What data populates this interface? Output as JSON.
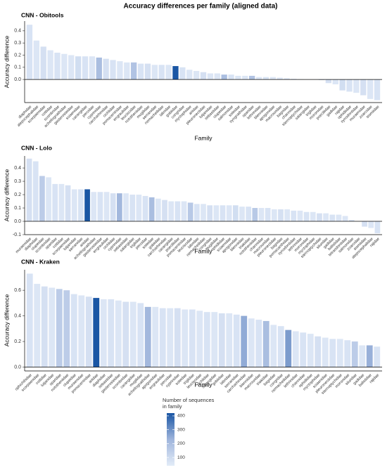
{
  "title": "Accuracy differences per family (aligned data)",
  "legend": {
    "title": [
      "Number of sequences",
      "in family"
    ],
    "lim": [
      40,
      420
    ],
    "ticks": [
      100,
      200,
      300,
      400
    ],
    "colors": [
      "#e3ecf8",
      "#9fb5dc",
      "#1a56a4"
    ]
  },
  "chart_data": [
    {
      "type": "bar",
      "title": "CNN - Obitools",
      "xlabel": "Family",
      "ylabel": "Accuracy difference",
      "categories": [
        "diaphidae",
        "alepocephalidae",
        "scorpaenidae",
        "cottidae",
        "scombridae",
        "acheilognathidae",
        "gasterosteidae",
        "sciaenidae",
        "carangidae",
        "percidae",
        "cyprinidae",
        "carcharhinidae",
        "cichlidae",
        "pomacentridae",
        "engraulidae",
        "leuciscidae",
        "nototheniidae",
        "mugilidae",
        "serranidae",
        "nemacheilidae",
        "labridae",
        "gobiidae",
        "congridae",
        "myctophidae",
        "ariidae",
        "pleuronectidae",
        "lutjanidae",
        "sebastidae",
        "clupeidae",
        "salmonidae",
        "soleidae",
        "syngnathidae",
        "sparidae",
        "lethrinidae",
        "blenniidae",
        "apogonidae",
        "macrouridae",
        "bagridae",
        "channidae",
        "sternoptychidae",
        "salangidae",
        "triglidae",
        "moronidae",
        "poeciliidae",
        "gadidae",
        "rajidae",
        "ophidiidae",
        "synodontidae",
        "muraenidae",
        "zoarcidae",
        "stomiidae"
      ],
      "values": [
        0.45,
        0.32,
        0.27,
        0.24,
        0.22,
        0.21,
        0.2,
        0.19,
        0.19,
        0.19,
        0.18,
        0.17,
        0.16,
        0.15,
        0.14,
        0.14,
        0.13,
        0.13,
        0.12,
        0.12,
        0.12,
        0.11,
        0.1,
        0.08,
        0.07,
        0.06,
        0.05,
        0.05,
        0.04,
        0.04,
        0.03,
        0.03,
        0.03,
        0.02,
        0.02,
        0.02,
        0.015,
        0.01,
        0.005,
        0.002,
        0,
        0,
        -0.005,
        -0.03,
        -0.04,
        -0.09,
        -0.1,
        -0.11,
        -0.13,
        -0.16,
        -0.17
      ],
      "counts": [
        70,
        60,
        80,
        60,
        70,
        60,
        60,
        90,
        70,
        60,
        200,
        80,
        70,
        60,
        60,
        180,
        70,
        80,
        60,
        70,
        60,
        420,
        70,
        60,
        60,
        80,
        60,
        60,
        200,
        70,
        60,
        60,
        180,
        60,
        70,
        60,
        60,
        60,
        70,
        60,
        60,
        60,
        70,
        80,
        60,
        90,
        70,
        60,
        80,
        60,
        70
      ],
      "ylim": [
        -0.19,
        0.48
      ],
      "yticks": [
        {
          "value": 0,
          "label": "0.0"
        },
        0.1,
        0.2,
        0.3,
        0.4
      ]
    },
    {
      "type": "bar",
      "title": "CNN - Lolo",
      "xlabel": "Family",
      "ylabel": "Accuracy difference",
      "categories": [
        "muraenidae",
        "diaphidae",
        "clupeidae",
        "scombridae",
        "sparidae",
        "cottidae",
        "scorpaenidae",
        "lutjanidae",
        "serranidae",
        "ariidae",
        "acheilognathidae",
        "gasterosteidae",
        "engraulidae",
        "cichlidae",
        "cyprinidae",
        "sebastidae",
        "salangidae",
        "triglidae",
        "percidae",
        "soleidae",
        "gobiidae",
        "carcharhinidae",
        "carangidae",
        "poeciliidae",
        "pomacentridae",
        "leuciscidae",
        "labridae",
        "nemacheilidae",
        "congridae",
        "mugilidae",
        "ophidiidae",
        "sciaenidae",
        "apogonidae",
        "blenniidae",
        "triakidae",
        "nototheniidae",
        "channidae",
        "macrouridae",
        "pleuronectidae",
        "bagridae",
        "pomacanthidae",
        "synodontidae",
        "lethrinidae",
        "moronidae",
        "myctophidae",
        "sternoptychidae",
        "siluridae",
        "gadidae",
        "balistidae",
        "tetraodontidae",
        "salmonidae",
        "zoarcidae",
        "stomiidae",
        "alepocephalidae",
        "rajidae"
      ],
      "values": [
        0.47,
        0.45,
        0.34,
        0.33,
        0.28,
        0.28,
        0.27,
        0.24,
        0.24,
        0.24,
        0.22,
        0.22,
        0.22,
        0.21,
        0.21,
        0.21,
        0.2,
        0.2,
        0.19,
        0.18,
        0.17,
        0.16,
        0.15,
        0.15,
        0.15,
        0.14,
        0.13,
        0.13,
        0.12,
        0.12,
        0.12,
        0.12,
        0.12,
        0.11,
        0.11,
        0.1,
        0.1,
        0.1,
        0.09,
        0.09,
        0.09,
        0.08,
        0.08,
        0.07,
        0.07,
        0.06,
        0.06,
        0.05,
        0.05,
        0.04,
        0.01,
        0,
        -0.04,
        -0.05,
        -0.09
      ],
      "counts": [
        80,
        70,
        150,
        60,
        70,
        60,
        80,
        60,
        70,
        420,
        60,
        70,
        60,
        80,
        220,
        60,
        70,
        60,
        70,
        200,
        60,
        80,
        60,
        70,
        60,
        160,
        70,
        60,
        80,
        60,
        70,
        60,
        90,
        60,
        70,
        160,
        60,
        70,
        60,
        80,
        60,
        70,
        60,
        70,
        60,
        80,
        60,
        70,
        60,
        60,
        70,
        60,
        80,
        60,
        70
      ],
      "ylim": [
        -0.1,
        0.49
      ],
      "yticks": [
        -0.1,
        {
          "value": 0,
          "label": "0.0"
        },
        0.1,
        0.2,
        0.3,
        0.4
      ]
    },
    {
      "type": "bar",
      "title": "CNN - Kraken",
      "xlabel": "Family",
      "ylabel": "Accuracy difference",
      "categories": [
        "ophichthidae",
        "scorpaenidae",
        "cottidae",
        "lutjanidae",
        "sparidae",
        "nototheniidae",
        "clupeidae",
        "muraenidae",
        "pomacentridae",
        "ariidae",
        "diaphidae",
        "sebastidae",
        "gasterosteidae",
        "scombridae",
        "carangidae",
        "mugilidae",
        "acheilognathidae",
        "apogonidae",
        "engraulidae",
        "percidae",
        "cyprinidae",
        "soleidae",
        "triglidae",
        "leuciscidae",
        "cichlidae",
        "salangidae",
        "gobiidae",
        "labridae",
        "serranidae",
        "carcharhinidae",
        "blenniidae",
        "macrouridae",
        "triakidae",
        "bagridae",
        "congridae",
        "nemacheilidae",
        "lethrinidae",
        "channidae",
        "ophidiidae",
        "myctophidae",
        "sciaenidae",
        "pleuronectidae",
        "sternoptychidae",
        "moronidae",
        "siluridae",
        "gadidae",
        "balistidae",
        "rajidae"
      ],
      "values": [
        0.73,
        0.65,
        0.63,
        0.62,
        0.61,
        0.6,
        0.57,
        0.56,
        0.55,
        0.54,
        0.53,
        0.53,
        0.52,
        0.51,
        0.51,
        0.5,
        0.47,
        0.47,
        0.46,
        0.46,
        0.46,
        0.45,
        0.45,
        0.44,
        0.43,
        0.43,
        0.42,
        0.42,
        0.41,
        0.4,
        0.38,
        0.37,
        0.36,
        0.33,
        0.32,
        0.29,
        0.28,
        0.27,
        0.26,
        0.24,
        0.23,
        0.22,
        0.22,
        0.21,
        0.2,
        0.17,
        0.17,
        0.16
      ],
      "counts": [
        70,
        60,
        80,
        60,
        150,
        150,
        70,
        60,
        80,
        420,
        60,
        70,
        60,
        80,
        60,
        70,
        220,
        60,
        70,
        60,
        80,
        60,
        70,
        60,
        70,
        60,
        80,
        60,
        70,
        250,
        60,
        70,
        200,
        60,
        70,
        280,
        60,
        70,
        60,
        80,
        60,
        70,
        60,
        70,
        150,
        60,
        240,
        70
      ],
      "ylim": [
        -0.03,
        0.76
      ],
      "yticks": [
        {
          "value": 0,
          "label": "0.0"
        },
        0.2,
        0.4,
        0.6
      ]
    }
  ]
}
